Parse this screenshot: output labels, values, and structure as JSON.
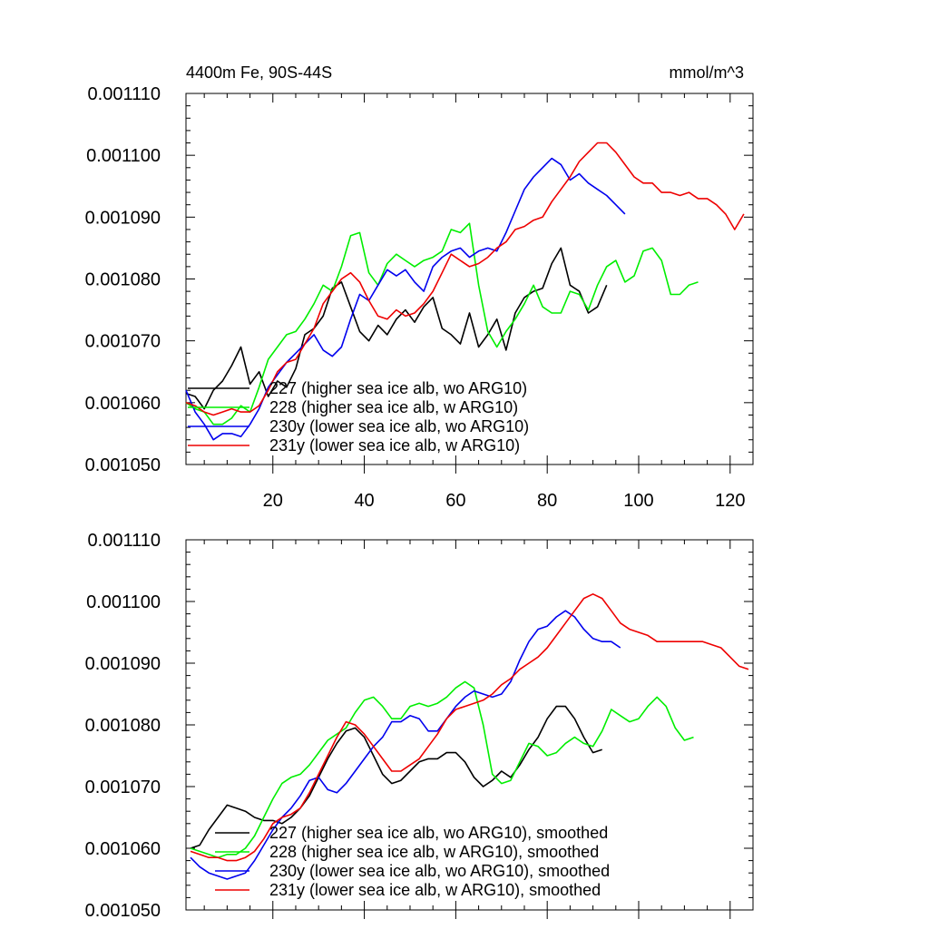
{
  "title_left": "4400m Fe, 90S-44S",
  "title_right": "mmol/m^3",
  "chart_data": [
    {
      "type": "line",
      "xlim": [
        1,
        125
      ],
      "ylim": [
        0.00105,
        0.00111
      ],
      "yticks": [
        "0.001050",
        "0.001060",
        "0.001070",
        "0.001080",
        "0.001090",
        "0.001100",
        "0.001110"
      ],
      "xticks": [
        "20",
        "40",
        "60",
        "80",
        "100",
        "120"
      ],
      "grid": false,
      "legend_position": "bottom-left",
      "series": [
        {
          "name": "227 (higher sea ice alb, wo ARG10)",
          "color": "#000000",
          "x": [
            1,
            3,
            5,
            7,
            9,
            11,
            13,
            15,
            17,
            19,
            21,
            23,
            25,
            27,
            29,
            31,
            33,
            35,
            37,
            39,
            41,
            43,
            45,
            47,
            49,
            51,
            53,
            55,
            57,
            59,
            61,
            63,
            65,
            67,
            69,
            71,
            73,
            75,
            77,
            79,
            81,
            83,
            85,
            87,
            89,
            91,
            93
          ],
          "y": [
            0.0010615,
            0.001061,
            0.001059,
            0.001062,
            0.0010635,
            0.001066,
            0.001069,
            0.001063,
            0.001065,
            0.001061,
            0.0010635,
            0.0010625,
            0.0010655,
            0.001071,
            0.001072,
            0.001074,
            0.0010785,
            0.0010795,
            0.0010755,
            0.0010715,
            0.00107,
            0.0010725,
            0.001071,
            0.0010735,
            0.001075,
            0.001073,
            0.0010755,
            0.001077,
            0.001072,
            0.001071,
            0.0010695,
            0.0010745,
            0.001069,
            0.001071,
            0.0010735,
            0.0010685,
            0.0010745,
            0.001077,
            0.001078,
            0.0010785,
            0.0010825,
            0.001085,
            0.001079,
            0.001078,
            0.0010745,
            0.0010755,
            0.001079
          ]
        },
        {
          "name": "228 (higher sea ice alb, w ARG10)",
          "color": "#00ee00",
          "x": [
            1,
            3,
            5,
            7,
            9,
            11,
            13,
            15,
            17,
            19,
            21,
            23,
            25,
            27,
            29,
            31,
            33,
            35,
            37,
            39,
            41,
            43,
            45,
            47,
            49,
            51,
            53,
            55,
            57,
            59,
            61,
            63,
            65,
            67,
            69,
            71,
            73,
            75,
            77,
            79,
            81,
            83,
            85,
            87,
            89,
            91,
            93,
            95,
            97,
            99,
            101,
            103,
            105,
            107,
            109,
            111,
            113
          ],
          "y": [
            0.00106,
            0.001059,
            0.0010585,
            0.0010565,
            0.0010565,
            0.0010575,
            0.0010595,
            0.0010585,
            0.0010625,
            0.001067,
            0.001069,
            0.001071,
            0.0010715,
            0.0010735,
            0.001076,
            0.001079,
            0.001078,
            0.001082,
            0.001087,
            0.0010875,
            0.001081,
            0.001079,
            0.0010825,
            0.001084,
            0.001083,
            0.001082,
            0.001083,
            0.0010835,
            0.0010845,
            0.001088,
            0.0010875,
            0.001089,
            0.001079,
            0.0010715,
            0.001069,
            0.0010715,
            0.0010735,
            0.001076,
            0.001079,
            0.0010755,
            0.0010745,
            0.0010745,
            0.001078,
            0.0010775,
            0.001075,
            0.001079,
            0.001082,
            0.001083,
            0.0010795,
            0.0010805,
            0.0010845,
            0.001085,
            0.001083,
            0.0010775,
            0.0010775,
            0.001079,
            0.0010795
          ]
        },
        {
          "name": "230y (lower sea ice alb, wo ARG10)",
          "color": "#0000ee",
          "x": [
            1,
            3,
            5,
            7,
            9,
            11,
            13,
            15,
            17,
            19,
            21,
            23,
            25,
            27,
            29,
            31,
            33,
            35,
            37,
            39,
            41,
            43,
            45,
            47,
            49,
            51,
            53,
            55,
            57,
            59,
            61,
            63,
            65,
            67,
            69,
            71,
            73,
            75,
            77,
            79,
            81,
            83,
            85,
            87,
            89,
            91,
            93,
            95,
            97
          ],
          "y": [
            0.001062,
            0.0010585,
            0.0010565,
            0.001054,
            0.001055,
            0.001055,
            0.0010545,
            0.0010565,
            0.001059,
            0.0010625,
            0.0010645,
            0.0010665,
            0.001068,
            0.0010695,
            0.001071,
            0.0010685,
            0.0010675,
            0.001069,
            0.0010735,
            0.0010775,
            0.0010765,
            0.001079,
            0.0010815,
            0.0010805,
            0.0010815,
            0.0010795,
            0.001078,
            0.001082,
            0.0010835,
            0.0010845,
            0.001085,
            0.0010835,
            0.0010845,
            0.001085,
            0.0010845,
            0.0010875,
            0.001091,
            0.0010945,
            0.0010965,
            0.001098,
            0.0010995,
            0.0010985,
            0.001096,
            0.001097,
            0.0010955,
            0.0010945,
            0.0010935,
            0.001092,
            0.0010905
          ]
        },
        {
          "name": "231y (lower sea ice alb, w ARG10)",
          "color": "#ee0000",
          "x": [
            1,
            3,
            5,
            7,
            9,
            11,
            13,
            15,
            17,
            19,
            21,
            23,
            25,
            27,
            29,
            31,
            33,
            35,
            37,
            39,
            41,
            43,
            45,
            47,
            49,
            51,
            53,
            55,
            57,
            59,
            61,
            63,
            65,
            67,
            69,
            71,
            73,
            75,
            77,
            79,
            81,
            83,
            85,
            87,
            89,
            91,
            93,
            95,
            97,
            99,
            101,
            103,
            105,
            107,
            109,
            111,
            113,
            115,
            117,
            119,
            121,
            123
          ],
          "y": [
            0.00106,
            0.0010595,
            0.0010585,
            0.001058,
            0.0010585,
            0.001059,
            0.0010585,
            0.0010585,
            0.0010595,
            0.001062,
            0.001065,
            0.0010665,
            0.001067,
            0.0010695,
            0.001072,
            0.001076,
            0.001078,
            0.00108,
            0.001081,
            0.0010795,
            0.0010765,
            0.001074,
            0.0010735,
            0.001075,
            0.001074,
            0.0010745,
            0.001076,
            0.001078,
            0.001081,
            0.001084,
            0.001083,
            0.001082,
            0.0010825,
            0.0010835,
            0.001085,
            0.001086,
            0.001088,
            0.0010885,
            0.0010895,
            0.00109,
            0.0010925,
            0.0010945,
            0.0010965,
            0.001099,
            0.0011005,
            0.001102,
            0.001102,
            0.0011005,
            0.0010985,
            0.0010965,
            0.0010955,
            0.0010955,
            0.001094,
            0.001094,
            0.0010935,
            0.001094,
            0.001093,
            0.001093,
            0.001092,
            0.0010905,
            0.001088,
            0.0010905
          ]
        }
      ]
    },
    {
      "type": "line",
      "xlim": [
        1,
        125
      ],
      "ylim": [
        0.00105,
        0.00111
      ],
      "yticks": [
        "0.001050",
        "0.001060",
        "0.001070",
        "0.001080",
        "0.001090",
        "0.001100",
        "0.001110"
      ],
      "grid": false,
      "legend_position": "bottom-left",
      "series": [
        {
          "name": "227 (higher sea ice alb, wo ARG10), smoothed",
          "color": "#000000",
          "x": [
            2,
            4,
            6,
            8,
            10,
            12,
            14,
            16,
            18,
            20,
            22,
            24,
            26,
            28,
            30,
            32,
            34,
            36,
            38,
            40,
            42,
            44,
            46,
            48,
            50,
            52,
            54,
            56,
            58,
            60,
            62,
            64,
            66,
            68,
            70,
            72,
            74,
            76,
            78,
            80,
            82,
            84,
            86,
            88,
            90,
            92
          ],
          "y": [
            0.00106,
            0.0010605,
            0.001063,
            0.001065,
            0.001067,
            0.0010665,
            0.001066,
            0.001065,
            0.0010645,
            0.0010645,
            0.001064,
            0.001065,
            0.0010665,
            0.0010685,
            0.0010715,
            0.0010745,
            0.001077,
            0.001079,
            0.0010795,
            0.001078,
            0.001075,
            0.001072,
            0.0010705,
            0.001071,
            0.0010725,
            0.001074,
            0.0010745,
            0.0010745,
            0.0010755,
            0.0010755,
            0.001074,
            0.0010715,
            0.00107,
            0.001071,
            0.0010725,
            0.0010715,
            0.0010735,
            0.001076,
            0.001078,
            0.001081,
            0.001083,
            0.001083,
            0.001081,
            0.001078,
            0.0010755,
            0.001076
          ]
        },
        {
          "name": "228 (higher sea ice alb, w ARG10), smoothed",
          "color": "#00ee00",
          "x": [
            2,
            4,
            6,
            8,
            10,
            12,
            14,
            16,
            18,
            20,
            22,
            24,
            26,
            28,
            30,
            32,
            34,
            36,
            38,
            40,
            42,
            44,
            46,
            48,
            50,
            52,
            54,
            56,
            58,
            60,
            62,
            64,
            66,
            68,
            70,
            72,
            74,
            76,
            78,
            80,
            82,
            84,
            86,
            88,
            90,
            92,
            94,
            96,
            98,
            100,
            102,
            104,
            106,
            108,
            110,
            112
          ],
          "y": [
            0.00106,
            0.0010595,
            0.001059,
            0.0010585,
            0.001059,
            0.001059,
            0.00106,
            0.001062,
            0.001065,
            0.001068,
            0.0010705,
            0.0010715,
            0.001072,
            0.0010735,
            0.0010755,
            0.0010775,
            0.0010785,
            0.0010795,
            0.001082,
            0.001084,
            0.0010845,
            0.001083,
            0.001081,
            0.001081,
            0.001083,
            0.0010835,
            0.001083,
            0.0010835,
            0.0010845,
            0.001086,
            0.001087,
            0.001086,
            0.00108,
            0.001072,
            0.0010705,
            0.001071,
            0.001074,
            0.001077,
            0.0010765,
            0.001075,
            0.0010755,
            0.001077,
            0.001078,
            0.001077,
            0.0010765,
            0.001079,
            0.0010825,
            0.0010815,
            0.0010805,
            0.001081,
            0.001083,
            0.0010845,
            0.001083,
            0.0010795,
            0.0010775,
            0.001078
          ]
        },
        {
          "name": "230y (lower sea ice alb, wo ARG10), smoothed",
          "color": "#0000ee",
          "x": [
            2,
            4,
            6,
            8,
            10,
            12,
            14,
            16,
            18,
            20,
            22,
            24,
            26,
            28,
            30,
            32,
            34,
            36,
            38,
            40,
            42,
            44,
            46,
            48,
            50,
            52,
            54,
            56,
            58,
            60,
            62,
            64,
            66,
            68,
            70,
            72,
            74,
            76,
            78,
            80,
            82,
            84,
            86,
            88,
            90,
            92,
            94,
            96
          ],
          "y": [
            0.0010585,
            0.001057,
            0.001056,
            0.0010555,
            0.001055,
            0.0010555,
            0.001056,
            0.001058,
            0.0010605,
            0.001063,
            0.001065,
            0.0010665,
            0.0010685,
            0.001071,
            0.0010715,
            0.0010695,
            0.001069,
            0.0010705,
            0.0010725,
            0.0010745,
            0.0010765,
            0.001078,
            0.0010805,
            0.0010805,
            0.0010815,
            0.001081,
            0.001079,
            0.001079,
            0.001081,
            0.001083,
            0.0010845,
            0.0010855,
            0.001085,
            0.0010845,
            0.001085,
            0.001087,
            0.0010905,
            0.0010935,
            0.0010955,
            0.001096,
            0.0010975,
            0.0010985,
            0.0010975,
            0.0010955,
            0.001094,
            0.0010935,
            0.0010935,
            0.0010925
          ]
        },
        {
          "name": "231y (lower sea ice alb, w ARG10), smoothed",
          "color": "#ee0000",
          "x": [
            2,
            4,
            6,
            8,
            10,
            12,
            14,
            16,
            18,
            20,
            22,
            24,
            26,
            28,
            30,
            32,
            34,
            36,
            38,
            40,
            42,
            44,
            46,
            48,
            50,
            52,
            54,
            56,
            58,
            60,
            62,
            64,
            66,
            68,
            70,
            72,
            74,
            76,
            78,
            80,
            82,
            84,
            86,
            88,
            90,
            92,
            94,
            96,
            98,
            100,
            102,
            104,
            106,
            108,
            110,
            112,
            114,
            116,
            118,
            120,
            122,
            124
          ],
          "y": [
            0.0010595,
            0.001059,
            0.0010585,
            0.0010585,
            0.001058,
            0.001058,
            0.0010585,
            0.0010595,
            0.0010615,
            0.001064,
            0.001065,
            0.0010655,
            0.0010665,
            0.001069,
            0.001072,
            0.001075,
            0.001078,
            0.0010805,
            0.00108,
            0.0010785,
            0.0010765,
            0.0010745,
            0.0010725,
            0.0010725,
            0.0010735,
            0.0010745,
            0.0010765,
            0.0010785,
            0.001081,
            0.0010825,
            0.001083,
            0.0010835,
            0.001084,
            0.001085,
            0.0010865,
            0.0010875,
            0.001089,
            0.00109,
            0.001091,
            0.0010925,
            0.0010945,
            0.0010965,
            0.0010985,
            0.0011005,
            0.0011012,
            0.0011005,
            0.0010985,
            0.0010965,
            0.0010955,
            0.001095,
            0.0010945,
            0.0010935,
            0.0010935,
            0.0010935,
            0.0010935,
            0.0010935,
            0.0010935,
            0.001093,
            0.0010925,
            0.001091,
            0.0010895,
            0.001089
          ]
        }
      ]
    }
  ]
}
